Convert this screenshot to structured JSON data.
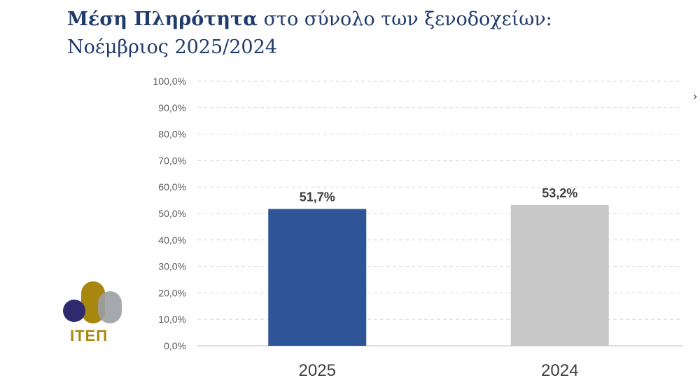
{
  "title": {
    "bold": "Μέση Πληρότητα",
    "rest": " στο σύνολο των ξενοδοχείων:",
    "line2": "Νοέμβριος 2025/2024"
  },
  "logo": {
    "text": "ΙΤΕΠ",
    "colors": [
      "#2e2a6e",
      "#a8870f",
      "#9b9ea3"
    ]
  },
  "edge_mark": "›",
  "chart_data": {
    "type": "bar",
    "categories": [
      "2025",
      "2024"
    ],
    "values": [
      51.7,
      53.2
    ],
    "value_labels": [
      "51,7%",
      "53,2%"
    ],
    "colors": [
      "#2e5597",
      "#c8c8c8"
    ],
    "ylim": [
      0,
      100
    ],
    "yticks": [
      0,
      10,
      20,
      30,
      40,
      50,
      60,
      70,
      80,
      90,
      100
    ],
    "ytick_labels": [
      "0,0%",
      "10,0%",
      "20,0%",
      "30,0%",
      "40,0%",
      "50,0%",
      "60,0%",
      "70,0%",
      "80,0%",
      "90,0%",
      "100,0%"
    ],
    "grid": true,
    "legend": "none"
  }
}
